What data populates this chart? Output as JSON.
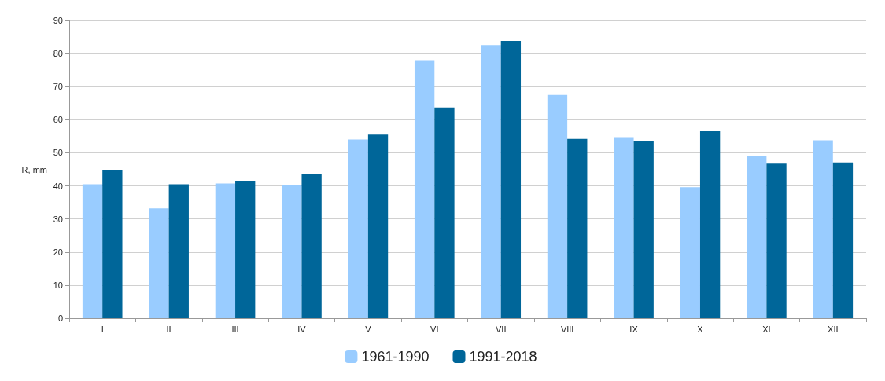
{
  "chart_data": {
    "type": "bar",
    "ylabel": "R, mm",
    "categories": [
      "I",
      "II",
      "III",
      "IV",
      "V",
      "VI",
      "VII",
      "VIII",
      "IX",
      "X",
      "XI",
      "XII"
    ],
    "series": [
      {
        "name": "1961-1990",
        "color": "#99ccff",
        "values": [
          40.5,
          33.2,
          40.7,
          40.3,
          54,
          77.8,
          82.6,
          67.5,
          54.5,
          39.6,
          49,
          53.8
        ]
      },
      {
        "name": "1991-2018",
        "color": "#006699",
        "values": [
          44.7,
          40.5,
          41.5,
          43.5,
          55.5,
          63.7,
          83.8,
          54.2,
          53.6,
          56.5,
          46.7,
          47.1
        ]
      }
    ],
    "ylim": [
      0,
      90
    ],
    "yticks": [
      0,
      10,
      20,
      30,
      40,
      50,
      60,
      70,
      80,
      90
    ],
    "grid": "y",
    "legend": "bottom"
  }
}
